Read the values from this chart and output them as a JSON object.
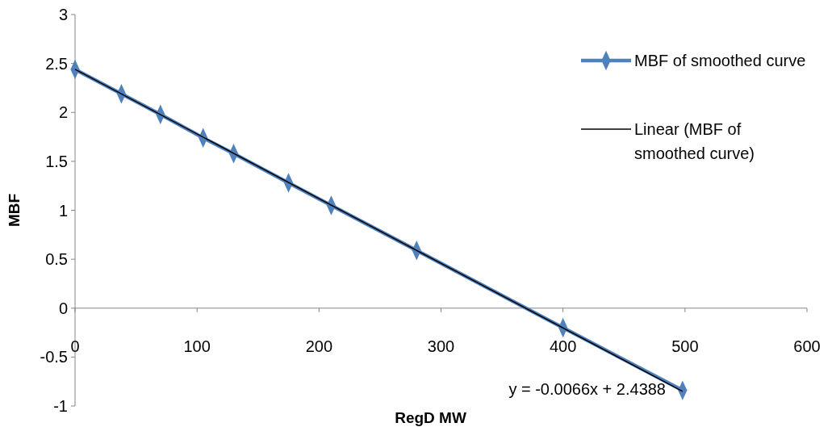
{
  "chart_data": {
    "type": "line",
    "xlabel": "RegD MW",
    "ylabel": "MBF",
    "xlim": [
      0,
      600
    ],
    "xticks": [
      0,
      100,
      200,
      300,
      400,
      500,
      600
    ],
    "ylim": [
      -1,
      3
    ],
    "yticks": [
      -1,
      -0.5,
      0,
      0.5,
      1,
      1.5,
      2,
      2.5,
      3
    ],
    "grid": false,
    "legend": "right",
    "series": [
      {
        "name": "MBF of smoothed curve",
        "color": "#4f81bd",
        "marker": "diamond",
        "x": [
          0,
          38,
          70,
          105,
          130,
          175,
          210,
          280,
          400,
          498
        ],
        "values": [
          2.44,
          2.19,
          1.98,
          1.74,
          1.58,
          1.28,
          1.05,
          0.59,
          -0.2,
          -0.84
        ]
      },
      {
        "name": "Linear (MBF of smoothed curve)",
        "color": "#000000",
        "marker": "none",
        "x": [
          0,
          498
        ],
        "values": [
          2.44,
          -0.85
        ]
      }
    ],
    "annotations": [
      "y = -0.0066x + 2.4388"
    ]
  }
}
